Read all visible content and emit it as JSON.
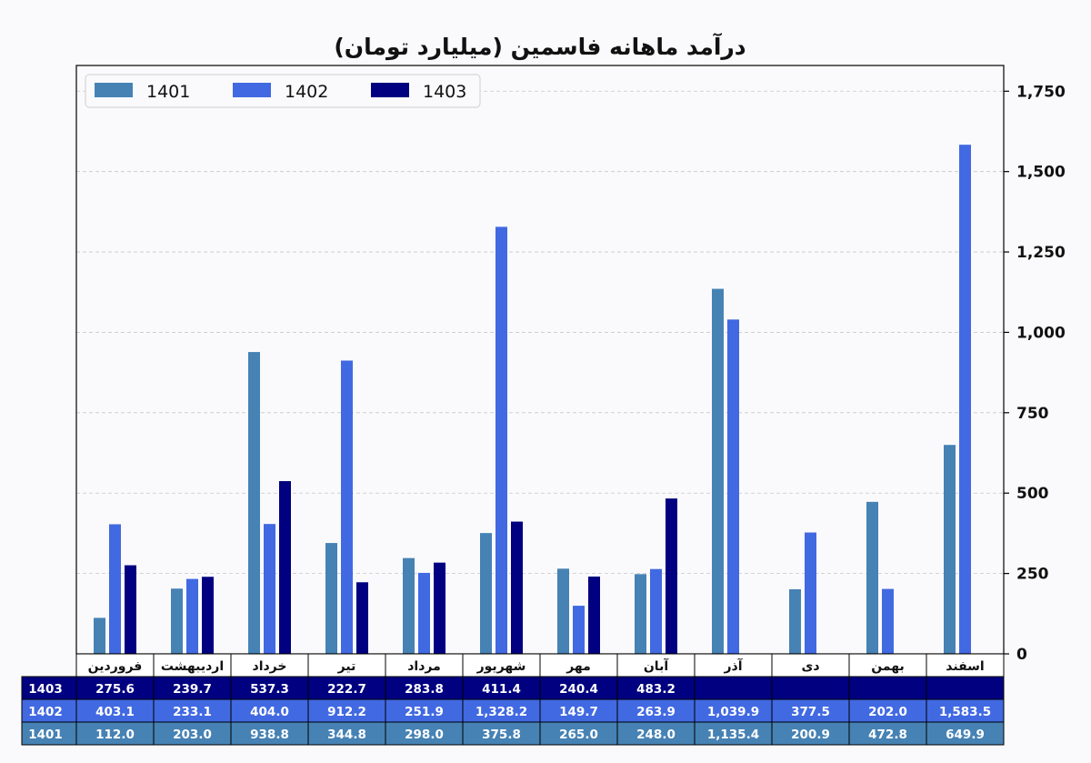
{
  "chart_data": {
    "type": "bar",
    "title": "درآمد ماهانه فاسمین (میلیارد تومان)",
    "xlabel": "",
    "ylabel": "",
    "ylim": [
      0,
      1830
    ],
    "yticks": [
      0,
      250,
      500,
      750,
      1000,
      1250,
      1500,
      1750
    ],
    "ytick_labels": [
      "0",
      "250",
      "500",
      "750",
      "1,000",
      "1,250",
      "1,500",
      "1,750"
    ],
    "y_axis_side": "right",
    "grid": "horizontal dashed",
    "legend_position": "top-left",
    "categories": [
      "فروردین",
      "اردیبهشت",
      "خرداد",
      "تیر",
      "مرداد",
      "شهریور",
      "مهر",
      "آبان",
      "آذر",
      "دی",
      "بهمن",
      "اسفند"
    ],
    "series": [
      {
        "name": "1401",
        "color": "#4682b4",
        "values": [
          112.0,
          203.0,
          938.8,
          344.8,
          298.0,
          375.8,
          265.0,
          248.0,
          1135.4,
          200.9,
          472.8,
          649.9
        ],
        "labels": [
          "112.0",
          "203.0",
          "938.8",
          "344.8",
          "298.0",
          "375.8",
          "265.0",
          "248.0",
          "1,135.4",
          "200.9",
          "472.8",
          "649.9"
        ]
      },
      {
        "name": "1402",
        "color": "#4169e1",
        "values": [
          403.1,
          233.1,
          404.0,
          912.2,
          251.9,
          1328.2,
          149.7,
          263.9,
          1039.9,
          377.5,
          202.0,
          1583.5
        ],
        "labels": [
          "403.1",
          "233.1",
          "404.0",
          "912.2",
          "251.9",
          "1,328.2",
          "149.7",
          "263.9",
          "1,039.9",
          "377.5",
          "202.0",
          "1,583.5"
        ]
      },
      {
        "name": "1403",
        "color": "#000080",
        "values": [
          275.6,
          239.7,
          537.3,
          222.7,
          283.8,
          411.4,
          240.4,
          483.2,
          null,
          null,
          null,
          null
        ],
        "labels": [
          "275.6",
          "239.7",
          "537.3",
          "222.7",
          "283.8",
          "411.4",
          "240.4",
          "483.2",
          "",
          "",
          "",
          ""
        ]
      }
    ],
    "table_row_order": [
      "1403",
      "1402",
      "1401"
    ]
  }
}
